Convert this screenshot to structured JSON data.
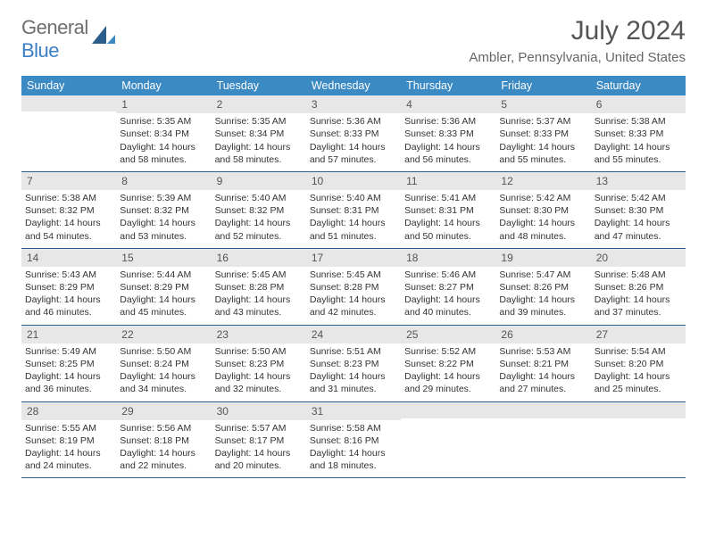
{
  "logo": {
    "general": "General",
    "blue": "Blue"
  },
  "title": "July 2024",
  "location": "Ambler, Pennsylvania, United States",
  "colors": {
    "headerBg": "#3b8ac4",
    "headerText": "#ffffff",
    "dayBarBg": "#e7e7e7",
    "ruleColor": "#2b5e8a",
    "bodyText": "#333333"
  },
  "weekdays": [
    "Sunday",
    "Monday",
    "Tuesday",
    "Wednesday",
    "Thursday",
    "Friday",
    "Saturday"
  ],
  "weeks": [
    [
      {
        "empty": true
      },
      {
        "num": "1",
        "sunrise": "5:35 AM",
        "sunset": "8:34 PM",
        "daylight": "14 hours and 58 minutes."
      },
      {
        "num": "2",
        "sunrise": "5:35 AM",
        "sunset": "8:34 PM",
        "daylight": "14 hours and 58 minutes."
      },
      {
        "num": "3",
        "sunrise": "5:36 AM",
        "sunset": "8:33 PM",
        "daylight": "14 hours and 57 minutes."
      },
      {
        "num": "4",
        "sunrise": "5:36 AM",
        "sunset": "8:33 PM",
        "daylight": "14 hours and 56 minutes."
      },
      {
        "num": "5",
        "sunrise": "5:37 AM",
        "sunset": "8:33 PM",
        "daylight": "14 hours and 55 minutes."
      },
      {
        "num": "6",
        "sunrise": "5:38 AM",
        "sunset": "8:33 PM",
        "daylight": "14 hours and 55 minutes."
      }
    ],
    [
      {
        "num": "7",
        "sunrise": "5:38 AM",
        "sunset": "8:32 PM",
        "daylight": "14 hours and 54 minutes."
      },
      {
        "num": "8",
        "sunrise": "5:39 AM",
        "sunset": "8:32 PM",
        "daylight": "14 hours and 53 minutes."
      },
      {
        "num": "9",
        "sunrise": "5:40 AM",
        "sunset": "8:32 PM",
        "daylight": "14 hours and 52 minutes."
      },
      {
        "num": "10",
        "sunrise": "5:40 AM",
        "sunset": "8:31 PM",
        "daylight": "14 hours and 51 minutes."
      },
      {
        "num": "11",
        "sunrise": "5:41 AM",
        "sunset": "8:31 PM",
        "daylight": "14 hours and 50 minutes."
      },
      {
        "num": "12",
        "sunrise": "5:42 AM",
        "sunset": "8:30 PM",
        "daylight": "14 hours and 48 minutes."
      },
      {
        "num": "13",
        "sunrise": "5:42 AM",
        "sunset": "8:30 PM",
        "daylight": "14 hours and 47 minutes."
      }
    ],
    [
      {
        "num": "14",
        "sunrise": "5:43 AM",
        "sunset": "8:29 PM",
        "daylight": "14 hours and 46 minutes."
      },
      {
        "num": "15",
        "sunrise": "5:44 AM",
        "sunset": "8:29 PM",
        "daylight": "14 hours and 45 minutes."
      },
      {
        "num": "16",
        "sunrise": "5:45 AM",
        "sunset": "8:28 PM",
        "daylight": "14 hours and 43 minutes."
      },
      {
        "num": "17",
        "sunrise": "5:45 AM",
        "sunset": "8:28 PM",
        "daylight": "14 hours and 42 minutes."
      },
      {
        "num": "18",
        "sunrise": "5:46 AM",
        "sunset": "8:27 PM",
        "daylight": "14 hours and 40 minutes."
      },
      {
        "num": "19",
        "sunrise": "5:47 AM",
        "sunset": "8:26 PM",
        "daylight": "14 hours and 39 minutes."
      },
      {
        "num": "20",
        "sunrise": "5:48 AM",
        "sunset": "8:26 PM",
        "daylight": "14 hours and 37 minutes."
      }
    ],
    [
      {
        "num": "21",
        "sunrise": "5:49 AM",
        "sunset": "8:25 PM",
        "daylight": "14 hours and 36 minutes."
      },
      {
        "num": "22",
        "sunrise": "5:50 AM",
        "sunset": "8:24 PM",
        "daylight": "14 hours and 34 minutes."
      },
      {
        "num": "23",
        "sunrise": "5:50 AM",
        "sunset": "8:23 PM",
        "daylight": "14 hours and 32 minutes."
      },
      {
        "num": "24",
        "sunrise": "5:51 AM",
        "sunset": "8:23 PM",
        "daylight": "14 hours and 31 minutes."
      },
      {
        "num": "25",
        "sunrise": "5:52 AM",
        "sunset": "8:22 PM",
        "daylight": "14 hours and 29 minutes."
      },
      {
        "num": "26",
        "sunrise": "5:53 AM",
        "sunset": "8:21 PM",
        "daylight": "14 hours and 27 minutes."
      },
      {
        "num": "27",
        "sunrise": "5:54 AM",
        "sunset": "8:20 PM",
        "daylight": "14 hours and 25 minutes."
      }
    ],
    [
      {
        "num": "28",
        "sunrise": "5:55 AM",
        "sunset": "8:19 PM",
        "daylight": "14 hours and 24 minutes."
      },
      {
        "num": "29",
        "sunrise": "5:56 AM",
        "sunset": "8:18 PM",
        "daylight": "14 hours and 22 minutes."
      },
      {
        "num": "30",
        "sunrise": "5:57 AM",
        "sunset": "8:17 PM",
        "daylight": "14 hours and 20 minutes."
      },
      {
        "num": "31",
        "sunrise": "5:58 AM",
        "sunset": "8:16 PM",
        "daylight": "14 hours and 18 minutes."
      },
      {
        "empty": true
      },
      {
        "empty": true
      },
      {
        "empty": true
      }
    ]
  ]
}
